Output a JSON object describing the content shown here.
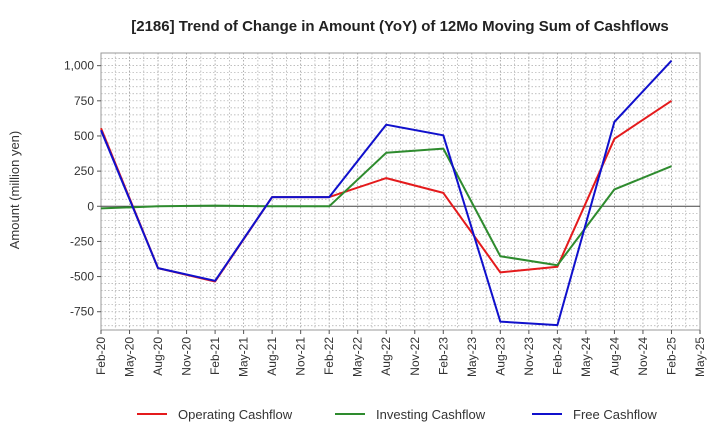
{
  "chart_data": {
    "type": "line",
    "title": "[2186]  Trend of Change in Amount (YoY) of 12Mo Moving Sum of Cashflows",
    "ylabel": "Amount (million yen)",
    "xlabel": "",
    "ylim": [
      -880,
      1090
    ],
    "yticks": [
      1000,
      750,
      500,
      250,
      0,
      -250,
      -500,
      -750
    ],
    "ytick_labels": [
      "1,000",
      "750",
      "500",
      "250",
      "0",
      "-250",
      "-500",
      "-750"
    ],
    "categories": [
      "Feb-20",
      "May-20",
      "Aug-20",
      "Nov-20",
      "Feb-21",
      "May-21",
      "Aug-21",
      "Nov-21",
      "Feb-22",
      "May-22",
      "Aug-22",
      "Nov-22",
      "Feb-23",
      "May-23",
      "Aug-23",
      "Nov-23",
      "Feb-24",
      "May-24",
      "Aug-24",
      "Nov-24",
      "Feb-25",
      "May-25"
    ],
    "series": [
      {
        "name": "Operating Cashflow",
        "color": "#e41a1c",
        "values": [
          555,
          null,
          -440,
          null,
          -535,
          null,
          65,
          null,
          65,
          null,
          200,
          null,
          95,
          null,
          -470,
          null,
          -430,
          null,
          480,
          null,
          750,
          null
        ]
      },
      {
        "name": "Investing Cashflow",
        "color": "#2e8b2e",
        "values": [
          -15,
          null,
          0,
          null,
          5,
          null,
          0,
          null,
          0,
          null,
          380,
          null,
          410,
          null,
          -355,
          null,
          -420,
          null,
          120,
          null,
          285,
          null
        ]
      },
      {
        "name": "Free Cashflow",
        "color": "#1010cc",
        "values": [
          540,
          null,
          -440,
          null,
          -530,
          null,
          65,
          null,
          65,
          null,
          580,
          null,
          505,
          null,
          -820,
          null,
          -845,
          null,
          600,
          null,
          1035,
          null
        ]
      }
    ],
    "grid": true,
    "legend_position": "bottom"
  }
}
